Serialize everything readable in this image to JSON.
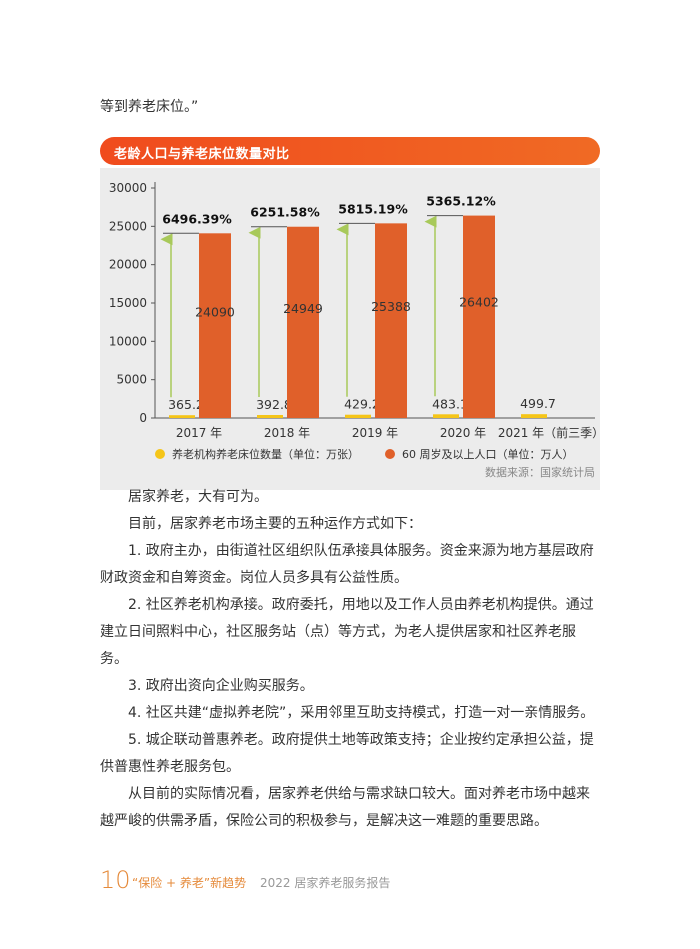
{
  "lead_text": "等到养老床位。”",
  "chart_section_title": "老龄人口与养老床位数量对比",
  "chart_data": {
    "type": "bar",
    "title": "老龄人口与养老床位数量对比",
    "categories": [
      "2017 年",
      "2018 年",
      "2019 年",
      "2020 年",
      "2021 年（前三季）"
    ],
    "series": [
      {
        "name": "养老机构养老床位数量（单位：万张）",
        "values": [
          365.2,
          392.8,
          429.2,
          483.1,
          499.7
        ],
        "color": "#f5c518"
      },
      {
        "name": "60 周岁及以上人口（单位：万人）",
        "values": [
          24090,
          24949,
          25388,
          26402,
          null
        ],
        "color": "#e0602a"
      }
    ],
    "annotations": [
      "6496.39%",
      "6251.58%",
      "5815.19%",
      "5365.12%"
    ],
    "yticks": [
      "0",
      "5000",
      "10000",
      "15000",
      "20000",
      "25000",
      "30000"
    ],
    "ylim": [
      0,
      30000
    ],
    "grid": false,
    "legend": "bottom",
    "source": "数据来源：国家统计局"
  },
  "paragraphs": [
    "居家养老，大有可为。",
    "目前，居家养老市场主要的五种运作方式如下：",
    "1. 政府主办，由街道社区组织队伍承接具体服务。资金来源为地方基层政府财政资金和自筹资金。岗位人员多具有公益性质。",
    "2. 社区养老机构承接。政府委托，用地以及工作人员由养老机构提供。通过建立日间照料中心，社区服务站（点）等方式，为老人提供居家和社区养老服务。",
    "3. 政府出资向企业购买服务。",
    "4. 社区共建“虚拟养老院”，采用邻里互助支持模式，打造一对一亲情服务。",
    "5. 城企联动普惠养老。政府提供土地等政策支持；企业按约定承担公益，提供普惠性养老服务包。",
    "从目前的实际情况看，居家养老供给与需求缺口较大。面对养老市场中越来越严峻的供需矛盾，保险公司的积极参与，是解决这一难题的重要思路。"
  ],
  "footer": {
    "page_number": "10",
    "title": "“保险 + 养老”新趋势",
    "subtitle": "2022 居家养老服务报告"
  },
  "colors": {
    "accent": "#f04b1d",
    "bar_population": "#e0602a",
    "bar_beds": "#f5c518",
    "arrow": "#a8c95a",
    "footer": "#e58a3a"
  }
}
